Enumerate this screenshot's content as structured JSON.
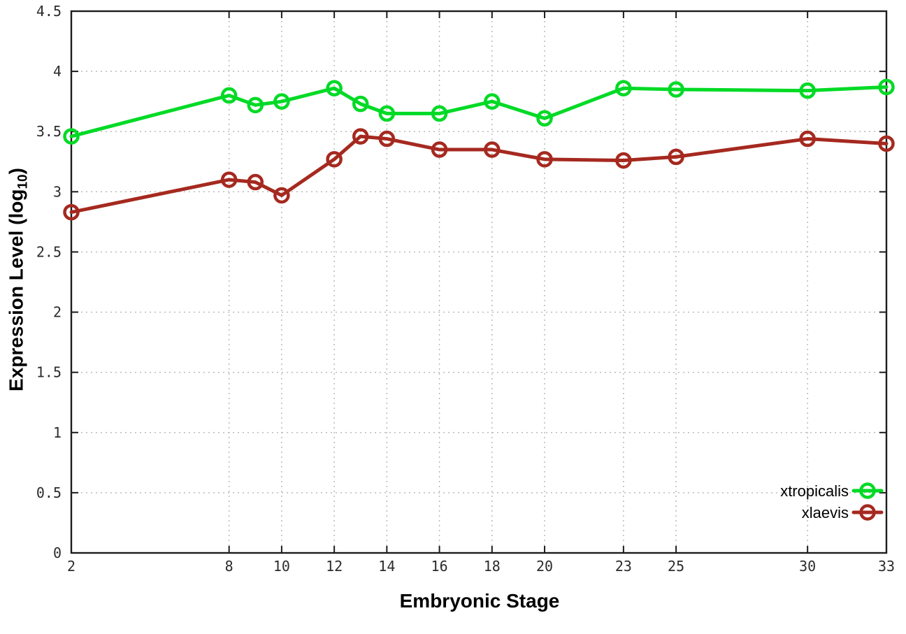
{
  "chart_data": {
    "type": "line",
    "title": "",
    "xlabel": "Embryonic Stage",
    "ylabel": "Expression Level (log10)",
    "ylabel_parts": {
      "pre": "Expression Level (log",
      "sub": "10",
      "post": ")"
    },
    "xlim": [
      2,
      33
    ],
    "ylim": [
      0,
      4.5
    ],
    "grid": true,
    "legend_position": "inside-bottom-right",
    "x": [
      2,
      8,
      9,
      10,
      12,
      13,
      14,
      16,
      18,
      20,
      23,
      25,
      30,
      33
    ],
    "xtick_values": [
      2,
      8,
      10,
      12,
      14,
      16,
      18,
      20,
      23,
      25,
      30,
      33
    ],
    "xtick_labels": [
      "2",
      "8",
      "10",
      "12",
      "14",
      "16",
      "18",
      "20",
      "23",
      "25",
      "30",
      "33"
    ],
    "ytick_values": [
      0,
      0.5,
      1,
      1.5,
      2,
      2.5,
      3,
      3.5,
      4,
      4.5
    ],
    "ytick_labels": [
      "0",
      "0.5",
      "1",
      "1.5",
      "2",
      "2.5",
      "3",
      "3.5",
      "4",
      "4.5"
    ],
    "series": [
      {
        "name": "xtropicalis",
        "color": "#00da25",
        "marker": "open-circle",
        "values": [
          3.46,
          3.8,
          3.72,
          3.75,
          3.86,
          3.73,
          3.65,
          3.65,
          3.75,
          3.61,
          3.86,
          3.85,
          3.84,
          3.87
        ]
      },
      {
        "name": "xlaevis",
        "color": "#a5291f",
        "marker": "open-circle",
        "values": [
          2.83,
          3.1,
          3.08,
          2.97,
          3.27,
          3.46,
          3.44,
          3.35,
          3.35,
          3.27,
          3.26,
          3.29,
          3.44,
          3.4
        ]
      }
    ]
  },
  "style": {
    "background": "#ffffff",
    "axis_color": "#1c1c1c",
    "grid_color": "#b5b5b5",
    "tick_label_color": "#2b2b2b",
    "axis_title_color": "#000000"
  }
}
